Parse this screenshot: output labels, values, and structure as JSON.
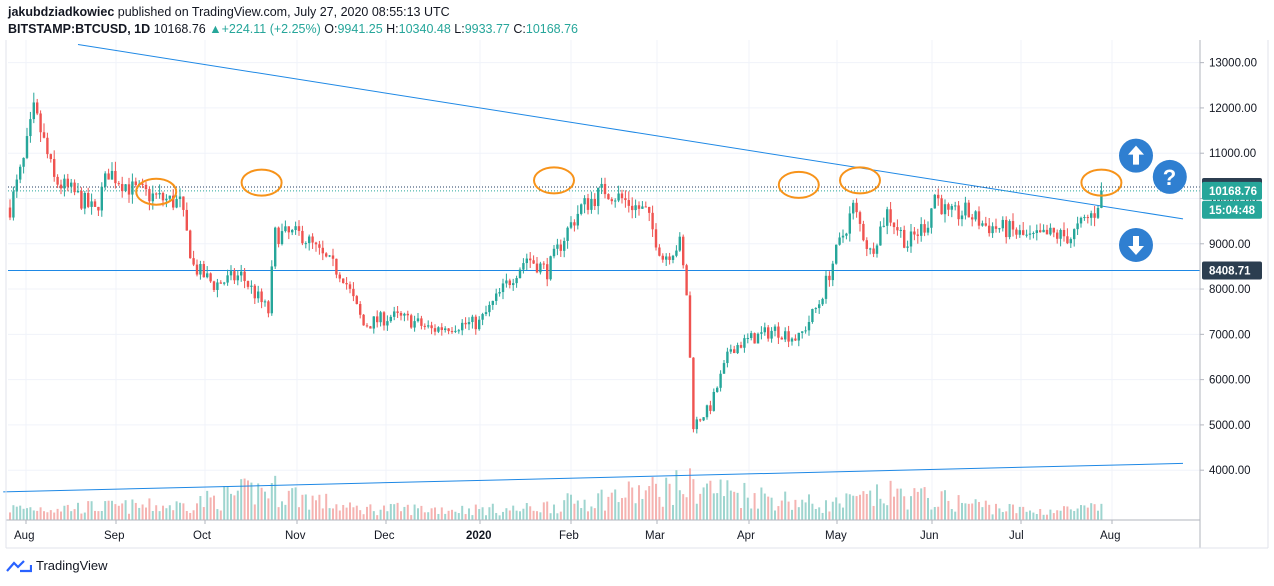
{
  "header": {
    "author": "jakubdziadkowiec",
    "published": " published on TradingView.com, July 27, 2020 08:55:13 UTC",
    "symbol": "BITSTAMP:BTCUSD, 1D",
    "last": "10168.76",
    "change": "+224.11 (+2.25%)",
    "o_label": "O:",
    "o": "9941.25",
    "h_label": "H:",
    "h": "10340.48",
    "l_label": "L:",
    "l": "9933.77",
    "c_label": "C:",
    "c": "10168.76"
  },
  "footer": {
    "brand": "TradingView"
  },
  "chart_data": {
    "type": "candlestick",
    "x_labels": [
      "Aug",
      "Sep",
      "Oct",
      "Nov",
      "Dec",
      "2020",
      "Feb",
      "Mar",
      "Apr",
      "May",
      "Jun",
      "Jul",
      "Aug"
    ],
    "y_ticks": [
      4000,
      5000,
      6000,
      7000,
      8000,
      9000,
      10000,
      11000,
      12000,
      13000
    ],
    "y_tick_labels": [
      "4000.00",
      "5000.00",
      "6000.00",
      "7000.00",
      "8000.00",
      "9000.00",
      "10000.00",
      "11000.00",
      "12000.00",
      "13000.00"
    ],
    "ylim": [
      2900,
      13500
    ],
    "anchors": [
      {
        "day": 0,
        "price": 9800
      },
      {
        "day": 4,
        "price": 10800
      },
      {
        "day": 7,
        "price": 11900
      },
      {
        "day": 9,
        "price": 11500
      },
      {
        "day": 13,
        "price": 10400
      },
      {
        "day": 19,
        "price": 10100
      },
      {
        "day": 25,
        "price": 9700
      },
      {
        "day": 29,
        "price": 10600
      },
      {
        "day": 36,
        "price": 10200
      },
      {
        "day": 44,
        "price": 10000
      },
      {
        "day": 50,
        "price": 9900
      },
      {
        "day": 54,
        "price": 8500
      },
      {
        "day": 60,
        "price": 8100
      },
      {
        "day": 68,
        "price": 8300
      },
      {
        "day": 76,
        "price": 7500
      },
      {
        "day": 78,
        "price": 9200
      },
      {
        "day": 86,
        "price": 9200
      },
      {
        "day": 92,
        "price": 8700
      },
      {
        "day": 98,
        "price": 8300
      },
      {
        "day": 104,
        "price": 7200
      },
      {
        "day": 112,
        "price": 7400
      },
      {
        "day": 118,
        "price": 7300
      },
      {
        "day": 124,
        "price": 7100
      },
      {
        "day": 130,
        "price": 7200
      },
      {
        "day": 138,
        "price": 7250
      },
      {
        "day": 146,
        "price": 8100
      },
      {
        "day": 152,
        "price": 8700
      },
      {
        "day": 158,
        "price": 8400
      },
      {
        "day": 164,
        "price": 9300
      },
      {
        "day": 168,
        "price": 9800
      },
      {
        "day": 175,
        "price": 10200
      },
      {
        "day": 182,
        "price": 9900
      },
      {
        "day": 187,
        "price": 9700
      },
      {
        "day": 192,
        "price": 8700
      },
      {
        "day": 197,
        "price": 9000
      },
      {
        "day": 199,
        "price": 7900
      },
      {
        "day": 201,
        "price": 5000
      },
      {
        "day": 206,
        "price": 5400
      },
      {
        "day": 212,
        "price": 6700
      },
      {
        "day": 218,
        "price": 6900
      },
      {
        "day": 225,
        "price": 7100
      },
      {
        "day": 232,
        "price": 6900
      },
      {
        "day": 238,
        "price": 7700
      },
      {
        "day": 243,
        "price": 8800
      },
      {
        "day": 248,
        "price": 9800
      },
      {
        "day": 253,
        "price": 8800
      },
      {
        "day": 258,
        "price": 9700
      },
      {
        "day": 264,
        "price": 9000
      },
      {
        "day": 270,
        "price": 9500
      },
      {
        "day": 272,
        "price": 10100
      },
      {
        "day": 276,
        "price": 9600
      },
      {
        "day": 281,
        "price": 9700
      },
      {
        "day": 287,
        "price": 9400
      },
      {
        "day": 294,
        "price": 9300
      },
      {
        "day": 300,
        "price": 9100
      },
      {
        "day": 306,
        "price": 9200
      },
      {
        "day": 312,
        "price": 9150
      },
      {
        "day": 316,
        "price": 9500
      },
      {
        "day": 319,
        "price": 9700
      },
      {
        "day": 321,
        "price": 10168.76
      }
    ],
    "last_day": 321,
    "volume_anchors": [
      {
        "day": 0,
        "value": 0.2
      },
      {
        "day": 50,
        "value": 0.25
      },
      {
        "day": 76,
        "value": 0.55
      },
      {
        "day": 100,
        "value": 0.2
      },
      {
        "day": 150,
        "value": 0.18
      },
      {
        "day": 200,
        "value": 0.6
      },
      {
        "day": 240,
        "value": 0.25
      },
      {
        "day": 260,
        "value": 0.45
      },
      {
        "day": 300,
        "value": 0.15
      },
      {
        "day": 321,
        "value": 0.2
      }
    ],
    "horizontal_lines": [
      {
        "price": 10252.43,
        "style": "dotted",
        "color": "#1e3a5f"
      },
      {
        "price": 10168.76,
        "style": "dotted",
        "color": "#26a69a"
      },
      {
        "price": 8408.71,
        "style": "solid",
        "color": "#1e88e5"
      }
    ],
    "trend_lines": [
      {
        "start_day": 20,
        "start_price": 13400,
        "end_day": 345,
        "end_price": 9550,
        "color": "#1e88e5"
      },
      {
        "start_day": -2,
        "start_price": 3520,
        "end_day": 345,
        "end_price": 4150,
        "color": "#1e88e5"
      }
    ],
    "price_badges": [
      {
        "label": "10252.43",
        "price": 10252.43,
        "color": "#2c3e50"
      },
      {
        "label": "10168.76",
        "price": 10168.76,
        "color": "#26a69a"
      },
      {
        "label": "15:04:48",
        "price": 9750,
        "color": "#26a69a"
      },
      {
        "label": "8408.71",
        "price": 8408.71,
        "color": "#2c3e50"
      }
    ],
    "annotations": {
      "circles": [
        {
          "day": 43,
          "price": 10150
        },
        {
          "day": 74,
          "price": 10350
        },
        {
          "day": 160,
          "price": 10400
        },
        {
          "day": 232,
          "price": 10300
        },
        {
          "day": 250,
          "price": 10400
        },
        {
          "day": 321,
          "price": 10350
        }
      ],
      "arrow_up": {
        "day": 315,
        "price": 11300
      },
      "question": {
        "day": 327,
        "price": 10300
      },
      "arrow_down": {
        "day": 315,
        "price": 9150
      }
    },
    "colors": {
      "up": "#26a69a",
      "down": "#ef5350",
      "grid": "#f0f3fa",
      "annotation": "#f7931a",
      "icon": "#2f7fd1"
    }
  }
}
